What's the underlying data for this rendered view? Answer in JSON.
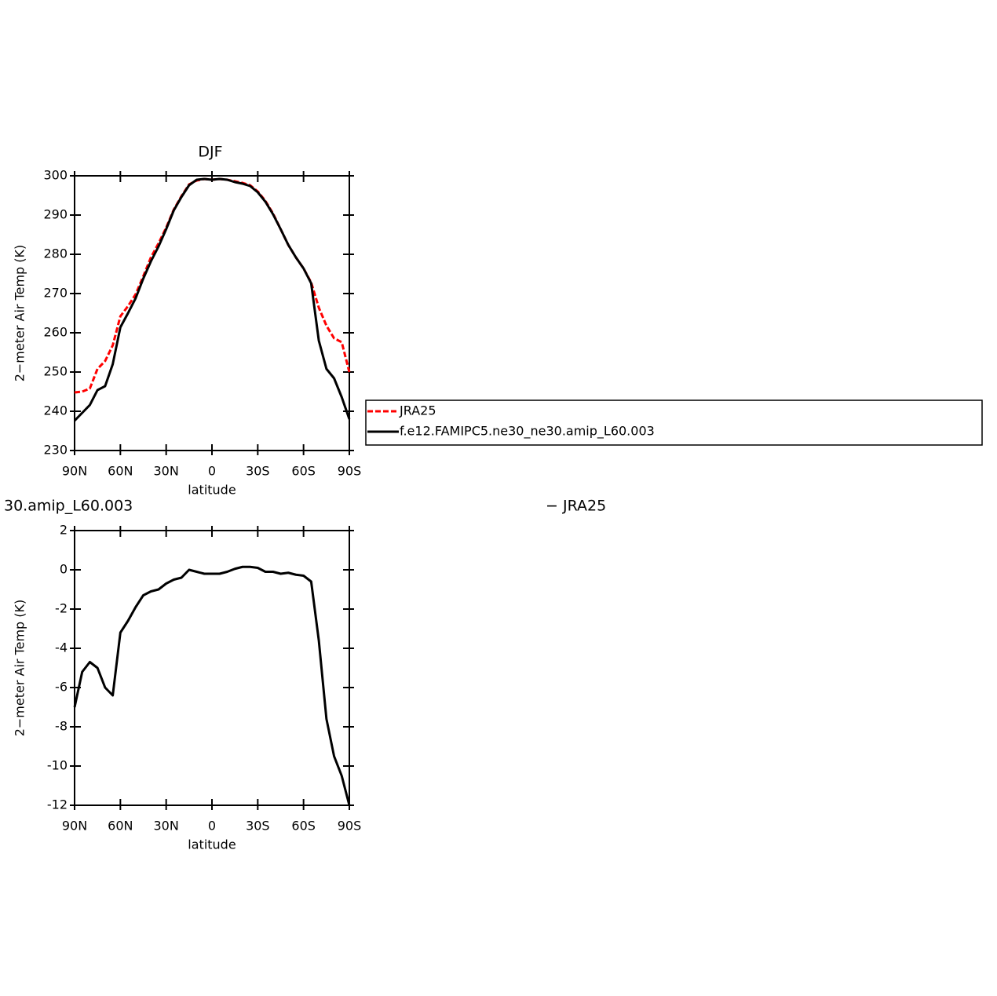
{
  "chart_data": [
    {
      "type": "line",
      "title": "DJF",
      "xlabel": "latitude",
      "ylabel": "2−meter Air Temp (K)",
      "x": [
        90,
        85,
        80,
        75,
        70,
        65,
        60,
        55,
        50,
        45,
        40,
        35,
        30,
        25,
        20,
        15,
        10,
        5,
        0,
        -5,
        -10,
        -15,
        -20,
        -25,
        -30,
        -35,
        -40,
        -45,
        -50,
        -55,
        -60,
        -65,
        -70,
        -75,
        -80,
        -85,
        -90
      ],
      "xlim": [
        90,
        -90
      ],
      "xticks": [
        {
          "value": 90,
          "label": "90N"
        },
        {
          "value": 60,
          "label": "60N"
        },
        {
          "value": 30,
          "label": "30N"
        },
        0,
        {
          "value": -30,
          "label": "30S"
        },
        {
          "value": -60,
          "label": "60S"
        },
        {
          "value": -90,
          "label": "90S"
        }
      ],
      "ylim": [
        230,
        300
      ],
      "yticks": [
        230,
        240,
        250,
        260,
        270,
        280,
        290,
        300
      ],
      "series": [
        {
          "name": "JRA25",
          "color": "#ff0000",
          "dashed": true,
          "values": [
            244.8,
            245,
            245.8,
            250.8,
            252.8,
            256.8,
            264.2,
            266.8,
            269.8,
            274.4,
            279.2,
            282.8,
            286.8,
            291.4,
            294.8,
            297.8,
            298.8,
            299.2,
            299,
            299.2,
            299,
            298.6,
            298.2,
            297.6,
            296,
            293.6,
            290.4,
            286.4,
            282.4,
            279.2,
            276.4,
            272.8,
            266.4,
            261.8,
            258.6,
            257.6,
            250
          ]
        },
        {
          "name": "f.e12.FAMIPC5.ne30_ne30.amip_L60.003",
          "color": "#000000",
          "dashed": false,
          "values": [
            237.6,
            239.6,
            241.6,
            245.4,
            246.4,
            252,
            261.4,
            265,
            268.8,
            273.8,
            278.2,
            282,
            286.4,
            291.2,
            294.6,
            297.6,
            299,
            299.2,
            299,
            299.2,
            299,
            298.4,
            298,
            297.4,
            295.8,
            293.4,
            290.2,
            286.4,
            282.4,
            279.2,
            276.4,
            272.6,
            258,
            250.8,
            248.4,
            243.6,
            238
          ]
        }
      ]
    },
    {
      "type": "line",
      "title_left": "30.amip_L60.003",
      "title_right": "− JRA25",
      "xlabel": "latitude",
      "ylabel": "2−meter Air Temp (K)",
      "x": [
        90,
        85,
        80,
        75,
        70,
        65,
        60,
        55,
        50,
        45,
        40,
        35,
        30,
        25,
        20,
        15,
        10,
        5,
        0,
        -5,
        -10,
        -15,
        -20,
        -25,
        -30,
        -35,
        -40,
        -45,
        -50,
        -55,
        -60,
        -65,
        -70,
        -75,
        -80,
        -85,
        -90
      ],
      "xlim": [
        90,
        -90
      ],
      "xticks": [
        {
          "value": 90,
          "label": "90N"
        },
        {
          "value": 60,
          "label": "60N"
        },
        {
          "value": 30,
          "label": "30N"
        },
        0,
        {
          "value": -30,
          "label": "30S"
        },
        {
          "value": -60,
          "label": "60S"
        },
        {
          "value": -90,
          "label": "90S"
        }
      ],
      "ylim": [
        -12,
        2
      ],
      "yticks": [
        -12,
        -10,
        -8,
        -6,
        -4,
        -2,
        0,
        2
      ],
      "series": [
        {
          "color": "#000000",
          "dashed": false,
          "values": [
            -7,
            -5.2,
            -4.7,
            -5,
            -6,
            -6.4,
            -3.2,
            -2.6,
            -1.9,
            -1.3,
            -1.1,
            -1,
            -0.7,
            -0.5,
            -0.4,
            0,
            -0.1,
            -0.2,
            -0.2,
            -0.2,
            -0.1,
            0.05,
            0.15,
            0.15,
            0.1,
            -0.1,
            -0.1,
            -0.2,
            -0.15,
            -0.25,
            -0.3,
            -0.6,
            -3.6,
            -7.6,
            -9.5,
            -10.5,
            -12
          ]
        }
      ]
    }
  ]
}
